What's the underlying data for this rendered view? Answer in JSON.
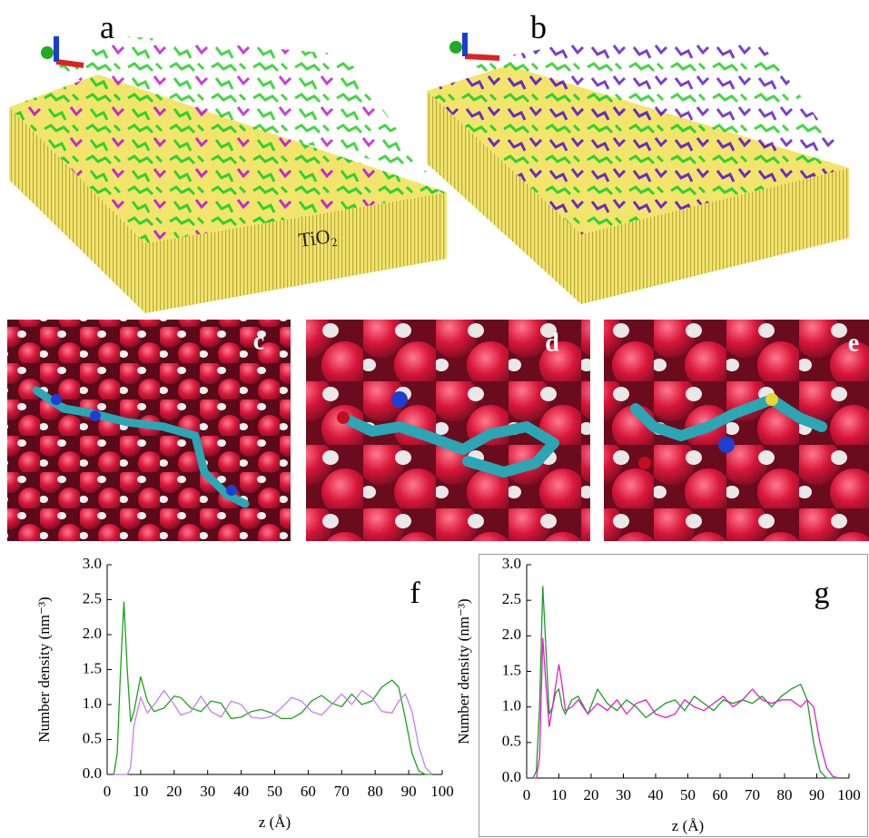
{
  "panel_labels": [
    "a",
    "b",
    "c",
    "d",
    "e"
  ],
  "substrate_label": "TiO₂",
  "chart_data": [
    {
      "type": "line",
      "title": "f",
      "x_label": "z (Å)",
      "y_label": "Number density  (nm⁻³)",
      "x": [
        2,
        3,
        4,
        5,
        6,
        7,
        8,
        10,
        12,
        14,
        17,
        20,
        22,
        25,
        28,
        31,
        34,
        37,
        40,
        43,
        46,
        49,
        52,
        55,
        58,
        61,
        64,
        67,
        70,
        73,
        76,
        79,
        82,
        85,
        87,
        89,
        91,
        93,
        95,
        97
      ],
      "series": [
        {
          "color": "#1aa31a",
          "values": [
            0,
            0.3,
            1.5,
            2.47,
            1.5,
            0.75,
            0.9,
            1.4,
            1.05,
            0.9,
            0.95,
            1.12,
            1.1,
            0.95,
            0.9,
            1.05,
            1.02,
            0.8,
            0.82,
            0.9,
            0.93,
            0.88,
            0.8,
            0.8,
            0.88,
            1.05,
            1.13,
            1.02,
            0.97,
            1.15,
            1.0,
            1.05,
            1.25,
            1.35,
            1.25,
            0.8,
            0.3,
            0.05,
            0,
            0
          ]
        },
        {
          "color": "#c77ef0",
          "values": [
            0,
            0,
            0,
            0,
            0,
            0.1,
            0.7,
            1.1,
            0.88,
            1.0,
            1.2,
            1.0,
            0.85,
            0.9,
            1.12,
            0.9,
            0.82,
            1.05,
            1.0,
            0.82,
            0.8,
            0.83,
            0.95,
            1.1,
            1.05,
            0.9,
            0.85,
            1.0,
            1.15,
            1.0,
            1.2,
            1.1,
            0.9,
            0.88,
            1.05,
            1.15,
            0.9,
            0.4,
            0.1,
            0
          ]
        }
      ],
      "xlim": [
        0,
        100
      ],
      "ylim": [
        0,
        3
      ],
      "xticks": [
        0,
        10,
        20,
        30,
        40,
        50,
        60,
        70,
        80,
        90,
        100
      ],
      "yticks": [
        {
          "value": 0,
          "label": "0.0"
        },
        0.5,
        {
          "value": 1,
          "label": "1.0"
        },
        1.5,
        {
          "value": 2,
          "label": "2.0"
        },
        2.5,
        {
          "value": 3,
          "label": "3.0"
        }
      ]
    },
    {
      "type": "line",
      "title": "g",
      "x_label": "z (Å)",
      "y_label": "Number density  (nm⁻³)",
      "x": [
        2,
        3,
        4,
        5,
        6,
        7,
        8,
        9,
        10,
        11,
        12,
        14,
        16,
        19,
        22,
        25,
        28,
        31,
        34,
        37,
        40,
        43,
        46,
        49,
        52,
        55,
        58,
        61,
        64,
        67,
        70,
        73,
        76,
        79,
        82,
        85,
        87,
        89,
        91,
        93,
        95,
        97
      ],
      "series": [
        {
          "color": "#1f9a2a",
          "values": [
            0,
            0.1,
            1.0,
            2.7,
            1.8,
            0.9,
            1.0,
            1.2,
            1.25,
            1.0,
            0.9,
            1.1,
            1.15,
            0.9,
            1.25,
            1.05,
            0.95,
            1.1,
            1.0,
            0.85,
            0.95,
            1.05,
            1.1,
            0.95,
            1.15,
            1.05,
            0.95,
            1.1,
            1.05,
            1.1,
            1.05,
            1.15,
            1.0,
            1.15,
            1.25,
            1.32,
            1.1,
            0.5,
            0.1,
            0,
            0,
            0
          ]
        },
        {
          "color": "#e020c8",
          "values": [
            0,
            0,
            0.3,
            1.97,
            1.3,
            0.72,
            1.0,
            1.3,
            1.6,
            1.3,
            0.95,
            1.0,
            1.1,
            0.9,
            1.05,
            0.95,
            1.1,
            0.9,
            1.05,
            1.1,
            0.9,
            0.85,
            0.9,
            1.1,
            1.0,
            0.95,
            1.05,
            1.15,
            1.0,
            1.1,
            1.25,
            1.1,
            1.05,
            1.1,
            1.1,
            1.0,
            1.1,
            1.0,
            0.5,
            0.15,
            0.02,
            0
          ]
        }
      ],
      "xlim": [
        0,
        100
      ],
      "ylim": [
        0,
        3
      ],
      "xticks": [
        0,
        10,
        20,
        30,
        40,
        50,
        60,
        70,
        80,
        90,
        100
      ],
      "yticks": [
        {
          "value": 0,
          "label": "0.0"
        },
        0.5,
        {
          "value": 1,
          "label": "1.0"
        },
        1.5,
        {
          "value": 2,
          "label": "2.0"
        },
        2.5,
        {
          "value": 3,
          "label": "3.0"
        }
      ]
    }
  ]
}
